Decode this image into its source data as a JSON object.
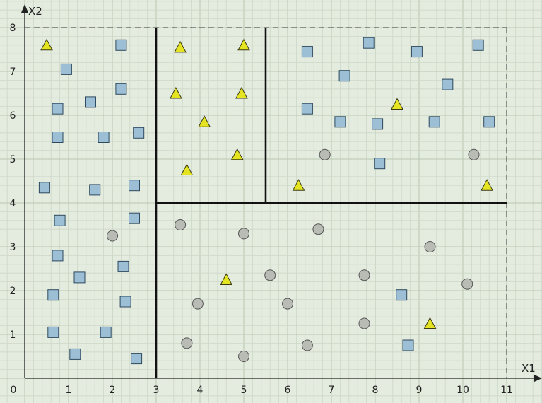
{
  "chart_data": {
    "type": "scatter",
    "title": "",
    "xlabel": "X1",
    "ylabel": "X2",
    "xlim": [
      0,
      11.8
    ],
    "ylim": [
      -0.3,
      8.3
    ],
    "x_ticks": [
      0,
      1,
      2,
      3,
      4,
      5,
      6,
      7,
      8,
      9,
      10,
      11
    ],
    "y_ticks": [
      1,
      2,
      3,
      4,
      5,
      6,
      7,
      8
    ],
    "grid": true,
    "bounding_box": {
      "x": [
        0,
        11
      ],
      "y": [
        0,
        8
      ]
    },
    "split_lines": [
      {
        "from": [
          3,
          0
        ],
        "to": [
          3,
          8
        ]
      },
      {
        "from": [
          3,
          4
        ],
        "to": [
          11,
          4
        ]
      },
      {
        "from": [
          5.5,
          4
        ],
        "to": [
          5.5,
          8
        ]
      }
    ],
    "series": [
      {
        "marker": "square",
        "color": "#9dbfd5",
        "points": [
          [
            0.45,
            4.35
          ],
          [
            0.65,
            1.9
          ],
          [
            0.65,
            1.05
          ],
          [
            0.75,
            2.8
          ],
          [
            0.75,
            5.5
          ],
          [
            0.75,
            6.15
          ],
          [
            0.8,
            3.6
          ],
          [
            0.95,
            7.05
          ],
          [
            1.15,
            0.55
          ],
          [
            1.25,
            2.3
          ],
          [
            1.5,
            6.3
          ],
          [
            1.6,
            4.3
          ],
          [
            1.8,
            5.5
          ],
          [
            1.85,
            1.05
          ],
          [
            2.2,
            6.6
          ],
          [
            2.2,
            7.6
          ],
          [
            2.25,
            2.55
          ],
          [
            2.3,
            1.75
          ],
          [
            2.5,
            4.4
          ],
          [
            2.5,
            3.65
          ],
          [
            2.55,
            0.45
          ],
          [
            2.6,
            5.6
          ],
          [
            6.45,
            7.45
          ],
          [
            6.45,
            6.15
          ],
          [
            7.2,
            5.85
          ],
          [
            7.3,
            6.9
          ],
          [
            7.85,
            7.65
          ],
          [
            8.05,
            5.8
          ],
          [
            8.1,
            4.9
          ],
          [
            8.6,
            1.9
          ],
          [
            8.75,
            0.75
          ],
          [
            8.95,
            7.45
          ],
          [
            9.35,
            5.85
          ],
          [
            9.65,
            6.7
          ],
          [
            10.35,
            7.6
          ],
          [
            10.6,
            5.85
          ]
        ]
      },
      {
        "marker": "triangle",
        "color": "#e4e422",
        "points": [
          [
            0.5,
            7.6
          ],
          [
            3.45,
            6.5
          ],
          [
            3.55,
            7.55
          ],
          [
            3.7,
            4.75
          ],
          [
            4.1,
            5.85
          ],
          [
            4.6,
            2.25
          ],
          [
            4.85,
            5.1
          ],
          [
            4.95,
            6.5
          ],
          [
            5.0,
            7.6
          ],
          [
            6.25,
            4.4
          ],
          [
            8.5,
            6.25
          ],
          [
            9.25,
            1.25
          ],
          [
            10.55,
            4.4
          ]
        ]
      },
      {
        "marker": "circle",
        "color": "#b9bcb5",
        "points": [
          [
            2.0,
            3.25
          ],
          [
            3.55,
            3.5
          ],
          [
            3.7,
            0.8
          ],
          [
            3.95,
            1.7
          ],
          [
            5.0,
            3.3
          ],
          [
            5.0,
            0.5
          ],
          [
            5.6,
            2.35
          ],
          [
            6.0,
            1.7
          ],
          [
            6.45,
            0.75
          ],
          [
            6.7,
            3.4
          ],
          [
            6.85,
            5.1
          ],
          [
            7.75,
            2.35
          ],
          [
            7.75,
            1.25
          ],
          [
            9.25,
            3.0
          ],
          [
            10.1,
            2.15
          ],
          [
            10.25,
            5.1
          ]
        ]
      }
    ]
  }
}
